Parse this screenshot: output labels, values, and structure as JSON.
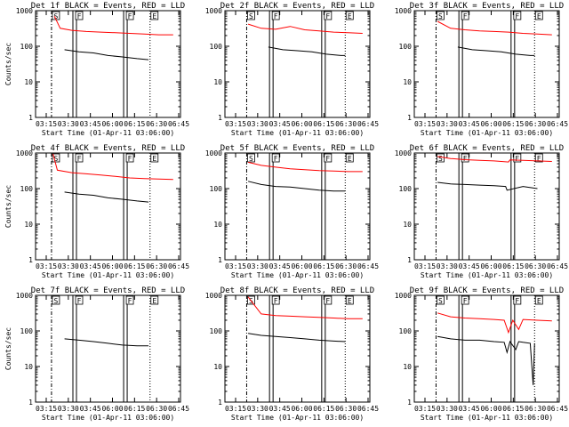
{
  "chart_data": [
    {
      "type": "line",
      "title": "Det 1f BLACK = Events, RED = LLD",
      "xlabel": "Start Time (01-Apr-11 03:06:00)",
      "ylabel": "Counts/sec",
      "x_ticks": [
        "03:15",
        "03:30",
        "03:45",
        "06:00",
        "06:15",
        "06:30",
        "06:45"
      ],
      "y_ticks": [
        "1",
        "10",
        "100",
        "1000"
      ],
      "ylim": [
        1,
        1000
      ],
      "log_y": true,
      "markers": [
        {
          "x": 0.11,
          "style": "dashdot",
          "label": "S"
        },
        {
          "x": 0.27,
          "style": "double",
          "label": "F"
        },
        {
          "x": 0.62,
          "style": "double",
          "label": "F"
        },
        {
          "x": 0.79,
          "style": "dotted",
          "label": "E"
        }
      ],
      "series": [
        {
          "color": "#ff0000",
          "x": [
            0.13,
            0.17,
            0.25,
            0.35,
            0.45,
            0.55,
            0.65,
            0.75,
            0.85,
            0.95
          ],
          "values": [
            700,
            320,
            280,
            260,
            250,
            240,
            230,
            220,
            210,
            210
          ]
        },
        {
          "color": "#000000",
          "x": [
            0.2,
            0.3,
            0.4,
            0.5,
            0.6,
            0.7,
            0.78
          ],
          "values": [
            80,
            70,
            65,
            55,
            50,
            45,
            42
          ]
        }
      ]
    },
    {
      "type": "line",
      "title": "Det 2f BLACK = Events, RED = LLD",
      "xlabel": "Start Time (01-Apr-11 03:06:00)",
      "ylabel": "",
      "x_ticks": [
        "03:15",
        "03:30",
        "03:45",
        "06:00",
        "06:15",
        "06:30",
        "06:45"
      ],
      "y_ticks": [
        "1",
        "10",
        "100",
        "1000"
      ],
      "ylim": [
        1,
        1000
      ],
      "log_y": true,
      "markers": [
        {
          "x": 0.15,
          "style": "dashdot",
          "label": "S"
        },
        {
          "x": 0.32,
          "style": "double",
          "label": "F"
        },
        {
          "x": 0.68,
          "style": "double",
          "label": "F"
        },
        {
          "x": 0.83,
          "style": "dotted",
          "label": "E"
        }
      ],
      "series": [
        {
          "color": "#ff0000",
          "x": [
            0.16,
            0.25,
            0.35,
            0.45,
            0.55,
            0.65,
            0.75,
            0.85,
            0.95
          ],
          "values": [
            420,
            320,
            300,
            360,
            290,
            270,
            250,
            240,
            230
          ]
        },
        {
          "color": "#000000",
          "x": [
            0.3,
            0.4,
            0.5,
            0.6,
            0.7,
            0.8,
            0.83
          ],
          "values": [
            95,
            80,
            75,
            70,
            60,
            55,
            55
          ]
        }
      ]
    },
    {
      "type": "line",
      "title": "Det 3f BLACK = Events, RED = LLD",
      "xlabel": "Start Time (01-Apr-11 03:06:00)",
      "ylabel": "",
      "x_ticks": [
        "03:15",
        "03:30",
        "03:45",
        "06:00",
        "06:15",
        "06:30",
        "06:45"
      ],
      "y_ticks": [
        "1",
        "10",
        "100",
        "1000"
      ],
      "ylim": [
        1,
        1000
      ],
      "log_y": true,
      "markers": [
        {
          "x": 0.15,
          "style": "dashdot",
          "label": "S"
        },
        {
          "x": 0.32,
          "style": "double",
          "label": "F"
        },
        {
          "x": 0.68,
          "style": "double",
          "label": "F"
        },
        {
          "x": 0.83,
          "style": "dotted",
          "label": "E"
        }
      ],
      "series": [
        {
          "color": "#ff0000",
          "x": [
            0.16,
            0.25,
            0.35,
            0.45,
            0.55,
            0.65,
            0.75,
            0.85,
            0.95
          ],
          "values": [
            500,
            320,
            290,
            270,
            260,
            250,
            230,
            220,
            210
          ]
        },
        {
          "color": "#000000",
          "x": [
            0.3,
            0.4,
            0.5,
            0.6,
            0.7,
            0.8,
            0.83
          ],
          "values": [
            95,
            80,
            75,
            70,
            60,
            55,
            55
          ]
        }
      ]
    },
    {
      "type": "line",
      "title": "Det 4f BLACK = Events, RED = LLD",
      "xlabel": "Start Time (01-Apr-11 03:06:00)",
      "ylabel": "Counts/sec",
      "x_ticks": [
        "03:15",
        "03:30",
        "03:45",
        "06:00",
        "06:15",
        "06:30",
        "06:45"
      ],
      "y_ticks": [
        "1",
        "10",
        "100",
        "1000"
      ],
      "ylim": [
        1,
        1000
      ],
      "log_y": true,
      "markers": [
        {
          "x": 0.11,
          "style": "dashdot",
          "label": "S"
        },
        {
          "x": 0.27,
          "style": "double",
          "label": "F"
        },
        {
          "x": 0.62,
          "style": "double",
          "label": "F"
        },
        {
          "x": 0.79,
          "style": "dotted",
          "label": "E"
        }
      ],
      "series": [
        {
          "color": "#ff0000",
          "x": [
            0.12,
            0.15,
            0.25,
            0.35,
            0.45,
            0.55,
            0.65,
            0.75,
            0.85,
            0.95
          ],
          "values": [
            950,
            330,
            280,
            260,
            240,
            220,
            200,
            190,
            185,
            180
          ]
        },
        {
          "color": "#000000",
          "x": [
            0.2,
            0.3,
            0.4,
            0.5,
            0.6,
            0.7,
            0.78
          ],
          "values": [
            80,
            70,
            65,
            55,
            50,
            45,
            42
          ]
        }
      ]
    },
    {
      "type": "line",
      "title": "Det 5f BLACK = Events, RED = LLD",
      "xlabel": "Start Time (01-Apr-11 03:06:00)",
      "ylabel": "",
      "x_ticks": [
        "03:15",
        "03:30",
        "03:45",
        "06:00",
        "06:15",
        "06:30",
        "06:45"
      ],
      "y_ticks": [
        "1",
        "10",
        "100",
        "1000"
      ],
      "ylim": [
        1,
        1000
      ],
      "log_y": true,
      "markers": [
        {
          "x": 0.15,
          "style": "dashdot",
          "label": "S"
        },
        {
          "x": 0.32,
          "style": "double",
          "label": "F"
        },
        {
          "x": 0.68,
          "style": "double",
          "label": "F"
        },
        {
          "x": 0.83,
          "style": "dotted",
          "label": "E"
        }
      ],
      "series": [
        {
          "color": "#ff0000",
          "x": [
            0.16,
            0.25,
            0.35,
            0.45,
            0.55,
            0.65,
            0.75,
            0.85,
            0.95
          ],
          "values": [
            550,
            450,
            400,
            360,
            340,
            320,
            310,
            300,
            300
          ]
        },
        {
          "color": "#000000",
          "x": [
            0.16,
            0.25,
            0.35,
            0.45,
            0.55,
            0.65,
            0.75,
            0.83
          ],
          "values": [
            160,
            130,
            115,
            110,
            100,
            90,
            85,
            85
          ]
        }
      ]
    },
    {
      "type": "line",
      "title": "Det 6f BLACK = Events, RED = LLD",
      "xlabel": "Start Time (01-Apr-11 03:06:00)",
      "ylabel": "",
      "x_ticks": [
        "03:15",
        "03:30",
        "03:45",
        "06:00",
        "06:15",
        "06:30",
        "06:45"
      ],
      "y_ticks": [
        "1",
        "10",
        "100",
        "1000"
      ],
      "ylim": [
        1,
        1000
      ],
      "log_y": true,
      "markers": [
        {
          "x": 0.15,
          "style": "dashdot",
          "label": "S"
        },
        {
          "x": 0.32,
          "style": "double",
          "label": "F"
        },
        {
          "x": 0.68,
          "style": "double",
          "label": "F"
        },
        {
          "x": 0.83,
          "style": "dotted",
          "label": "E"
        }
      ],
      "series": [
        {
          "color": "#ff0000",
          "x": [
            0.16,
            0.25,
            0.35,
            0.45,
            0.55,
            0.65,
            0.66,
            0.75,
            0.85,
            0.95
          ],
          "values": [
            800,
            700,
            650,
            620,
            600,
            560,
            640,
            620,
            600,
            580
          ]
        },
        {
          "color": "#000000",
          "x": [
            0.16,
            0.25,
            0.35,
            0.45,
            0.55,
            0.63,
            0.64,
            0.75,
            0.85
          ],
          "values": [
            150,
            135,
            130,
            125,
            120,
            115,
            90,
            115,
            100
          ]
        }
      ]
    },
    {
      "type": "line",
      "title": "Det 7f BLACK = Events, RED = LLD",
      "xlabel": "Start Time (01-Apr-11 03:06:00)",
      "ylabel": "Counts/sec",
      "x_ticks": [
        "03:15",
        "03:30",
        "03:45",
        "06:00",
        "06:15",
        "06:30",
        "06:45"
      ],
      "y_ticks": [
        "1",
        "10",
        "100",
        "1000"
      ],
      "ylim": [
        1,
        1000
      ],
      "log_y": true,
      "markers": [
        {
          "x": 0.11,
          "style": "dashdot",
          "label": "S"
        },
        {
          "x": 0.27,
          "style": "double",
          "label": "F"
        },
        {
          "x": 0.62,
          "style": "double",
          "label": "F"
        },
        {
          "x": 0.79,
          "style": "dotted",
          "label": "E"
        }
      ],
      "series": [
        {
          "color": "#000000",
          "x": [
            0.2,
            0.3,
            0.4,
            0.5,
            0.6,
            0.7,
            0.78
          ],
          "values": [
            60,
            55,
            50,
            45,
            40,
            38,
            38
          ]
        }
      ]
    },
    {
      "type": "line",
      "title": "Det 8f BLACK = Events, RED = LLD",
      "xlabel": "Start Time (01-Apr-11 03:06:00)",
      "ylabel": "",
      "x_ticks": [
        "03:15",
        "03:30",
        "03:45",
        "06:00",
        "06:15",
        "06:30",
        "06:45"
      ],
      "y_ticks": [
        "1",
        "10",
        "100",
        "1000"
      ],
      "ylim": [
        1,
        1000
      ],
      "log_y": true,
      "markers": [
        {
          "x": 0.15,
          "style": "dashdot",
          "label": "S"
        },
        {
          "x": 0.32,
          "style": "double",
          "label": "F"
        },
        {
          "x": 0.68,
          "style": "double",
          "label": "F"
        },
        {
          "x": 0.83,
          "style": "dotted",
          "label": "E"
        }
      ],
      "series": [
        {
          "color": "#ff0000",
          "x": [
            0.16,
            0.25,
            0.35,
            0.45,
            0.55,
            0.65,
            0.75,
            0.85,
            0.95
          ],
          "values": [
            900,
            300,
            270,
            260,
            250,
            240,
            230,
            220,
            220
          ]
        },
        {
          "color": "#000000",
          "x": [
            0.16,
            0.25,
            0.35,
            0.45,
            0.55,
            0.65,
            0.75,
            0.83
          ],
          "values": [
            85,
            75,
            70,
            65,
            60,
            55,
            52,
            50
          ]
        }
      ]
    },
    {
      "type": "line",
      "title": "Det 9f BLACK = Events, RED = LLD",
      "xlabel": "Start Time (01-Apr-11 03:06:00)",
      "ylabel": "",
      "x_ticks": [
        "03:15",
        "03:30",
        "03:45",
        "06:00",
        "06:15",
        "06:30",
        "06:45"
      ],
      "y_ticks": [
        "1",
        "10",
        "100",
        "1000"
      ],
      "ylim": [
        1,
        1000
      ],
      "log_y": true,
      "markers": [
        {
          "x": 0.15,
          "style": "dashdot",
          "label": "S"
        },
        {
          "x": 0.32,
          "style": "double",
          "label": "F"
        },
        {
          "x": 0.68,
          "style": "double",
          "label": "F"
        },
        {
          "x": 0.83,
          "style": "dotted",
          "label": "E"
        }
      ],
      "series": [
        {
          "color": "#ff0000",
          "x": [
            0.16,
            0.25,
            0.35,
            0.45,
            0.55,
            0.62,
            0.65,
            0.68,
            0.72,
            0.75,
            0.85,
            0.95
          ],
          "values": [
            320,
            250,
            230,
            220,
            210,
            200,
            90,
            200,
            110,
            210,
            200,
            190
          ]
        },
        {
          "color": "#000000",
          "x": [
            0.16,
            0.25,
            0.35,
            0.45,
            0.55,
            0.62,
            0.64,
            0.66,
            0.7,
            0.72,
            0.75,
            0.8,
            0.82,
            0.83
          ],
          "values": [
            70,
            60,
            55,
            55,
            50,
            48,
            25,
            50,
            30,
            50,
            48,
            45,
            3,
            45
          ]
        }
      ]
    }
  ]
}
